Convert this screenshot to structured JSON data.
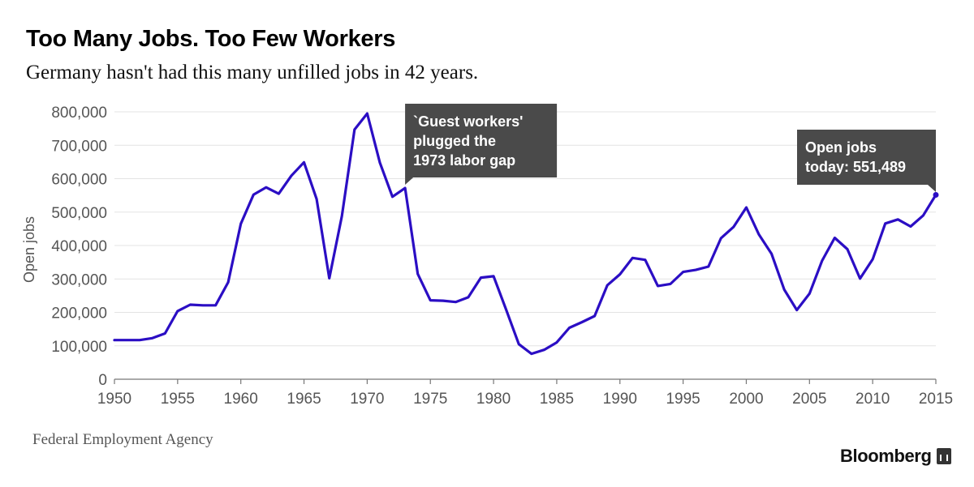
{
  "header": {
    "title": "Too Many Jobs. Too Few Workers",
    "subtitle": "Germany hasn't had this many unfilled jobs in 42 years."
  },
  "footer": {
    "source": "Federal Employment Agency",
    "brand": "Bloomberg"
  },
  "colors": {
    "line": "#2b0ec4",
    "annotation_bg": "#4a4a4a",
    "grid": "#e3e3e3",
    "axis_text": "#555555"
  },
  "chart_data": {
    "type": "line",
    "title": "Too Many Jobs. Too Few Workers",
    "subtitle": "Germany hasn't had this many unfilled jobs in 42 years.",
    "xlabel": "",
    "ylabel": "Open jobs",
    "xlim": [
      1950,
      2015
    ],
    "ylim": [
      0,
      800000
    ],
    "grid": true,
    "x_ticks": [
      1950,
      1955,
      1960,
      1965,
      1970,
      1975,
      1980,
      1985,
      1990,
      1995,
      2000,
      2005,
      2010,
      2015
    ],
    "y_ticks": [
      0,
      100000,
      200000,
      300000,
      400000,
      500000,
      600000,
      700000,
      800000
    ],
    "y_tick_labels": [
      "0",
      "100,000",
      "200,000",
      "300,000",
      "400,000",
      "500,000",
      "600,000",
      "700,000",
      "800,000"
    ],
    "series": [
      {
        "name": "Open jobs",
        "x": [
          1950,
          1951,
          1952,
          1953,
          1954,
          1955,
          1956,
          1957,
          1958,
          1959,
          1960,
          1961,
          1962,
          1963,
          1964,
          1965,
          1966,
          1967,
          1968,
          1969,
          1970,
          1971,
          1972,
          1973,
          1974,
          1975,
          1976,
          1977,
          1978,
          1979,
          1980,
          1981,
          1982,
          1983,
          1984,
          1985,
          1986,
          1987,
          1988,
          1989,
          1990,
          1991,
          1992,
          1993,
          1994,
          1995,
          1996,
          1997,
          1998,
          1999,
          2000,
          2001,
          2002,
          2003,
          2004,
          2005,
          2006,
          2007,
          2008,
          2009,
          2010,
          2011,
          2012,
          2013,
          2014,
          2015
        ],
        "values": [
          117000,
          117000,
          117000,
          123000,
          137000,
          204000,
          223000,
          221000,
          221000,
          290000,
          465000,
          552000,
          574000,
          555000,
          609000,
          649000,
          539000,
          302000,
          488000,
          747000,
          795000,
          648000,
          546000,
          572000,
          315000,
          236000,
          235000,
          231000,
          245000,
          304000,
          308000,
          208000,
          105000,
          76000,
          88000,
          110000,
          154000,
          171000,
          189000,
          281000,
          314000,
          363000,
          357000,
          279000,
          285000,
          321000,
          327000,
          337000,
          422000,
          456000,
          514000,
          433000,
          375000,
          268000,
          207000,
          256000,
          355000,
          423000,
          389000,
          301000,
          359000,
          466000,
          478000,
          457000,
          490000,
          551489
        ]
      }
    ],
    "annotations": [
      {
        "line1": "`Guest workers'",
        "line2": "plugged the",
        "line3": "1973 labor gap",
        "x": 1973,
        "y": 572000
      },
      {
        "line1": "Open jobs",
        "line2": "today: 551,489",
        "x": 2015,
        "y": 551489
      }
    ]
  }
}
